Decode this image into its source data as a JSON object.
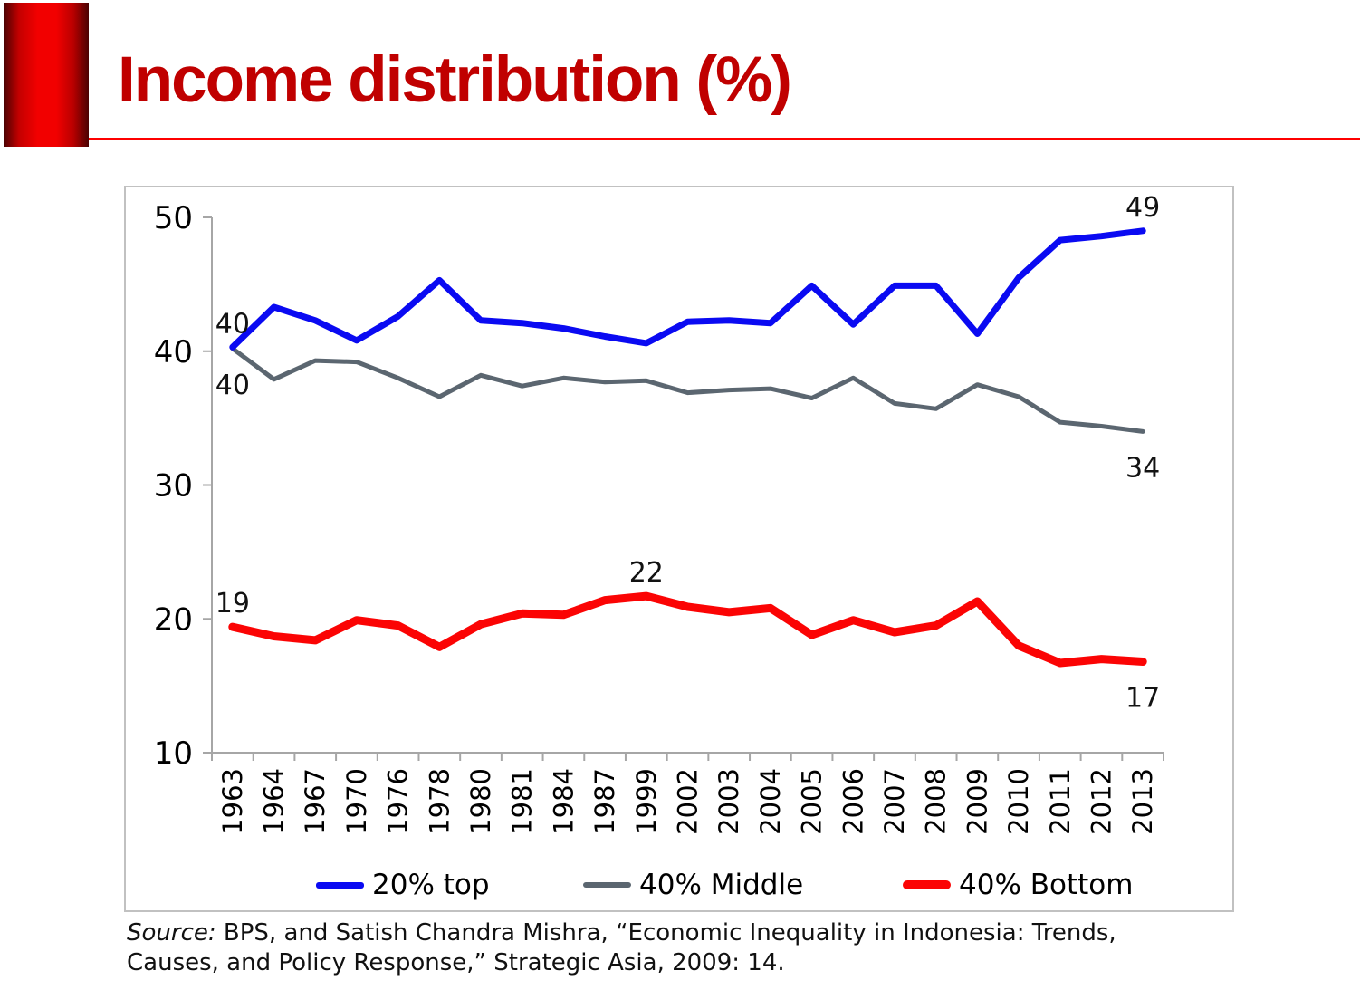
{
  "page": {
    "title": "Income distribution (%)",
    "source_prefix": "Source:",
    "source_text": " BPS, and Satish Chandra Mishra, “Economic Inequality in Indonesia: Trends, Causes, and Policy Response,” Strategic Asia, 2009: 14."
  },
  "colors": {
    "title": "#c00000",
    "rule": "#fe0000",
    "axis": "#a6a6a6",
    "tick_label": "#000000",
    "data_label": "#121212",
    "frame_border": "#c1c1c1"
  },
  "chart_data": {
    "type": "line",
    "title": "Income distribution (%)",
    "xlabel": "",
    "ylabel": "",
    "categories": [
      "1963",
      "1964",
      "1967",
      "1970",
      "1976",
      "1978",
      "1980",
      "1981",
      "1984",
      "1987",
      "1999",
      "2002",
      "2003",
      "2004",
      "2005",
      "2006",
      "2007",
      "2008",
      "2009",
      "2010",
      "2011",
      "2012",
      "2013"
    ],
    "series": [
      {
        "name": "20% top",
        "color": "#0a0af2",
        "width": 7,
        "values": [
          40.3,
          43.3,
          42.3,
          40.8,
          42.6,
          45.3,
          42.3,
          42.1,
          41.7,
          41.1,
          40.6,
          42.2,
          42.3,
          42.1,
          44.9,
          42.0,
          44.9,
          44.9,
          41.3,
          45.5,
          48.3,
          48.6,
          49
        ]
      },
      {
        "name": "40% Middle",
        "color": "#5b6670",
        "width": 5,
        "values": [
          40.2,
          37.9,
          39.3,
          39.2,
          38.0,
          36.6,
          38.2,
          37.4,
          38.0,
          37.7,
          37.8,
          36.9,
          37.1,
          37.2,
          36.5,
          38.0,
          36.1,
          35.7,
          37.5,
          36.6,
          34.7,
          34.4,
          34
        ]
      },
      {
        "name": "40% Bottom",
        "color": "#fb0404",
        "width": 9,
        "values": [
          19.4,
          18.7,
          18.4,
          19.9,
          19.5,
          17.9,
          19.6,
          20.4,
          20.3,
          21.4,
          21.7,
          20.9,
          20.5,
          20.8,
          18.8,
          19.9,
          19.0,
          19.5,
          21.3,
          18.0,
          16.7,
          17.0,
          16.8
        ]
      }
    ],
    "ylim": [
      10,
      50
    ],
    "yticks": [
      10,
      20,
      30,
      40,
      50
    ],
    "grid": false,
    "legend_position": "bottom",
    "annotations": [
      {
        "text": "40",
        "series": 0,
        "index": 0,
        "pos": "above"
      },
      {
        "text": "40",
        "series": 1,
        "index": 0,
        "pos": "below"
      },
      {
        "text": "49",
        "series": 0,
        "index": 22,
        "pos": "above"
      },
      {
        "text": "34",
        "series": 1,
        "index": 22,
        "pos": "below"
      },
      {
        "text": "19",
        "series": 2,
        "index": 0,
        "pos": "above"
      },
      {
        "text": "22",
        "series": 2,
        "index": 10,
        "pos": "above"
      },
      {
        "text": "17",
        "series": 2,
        "index": 22,
        "pos": "below"
      }
    ]
  }
}
